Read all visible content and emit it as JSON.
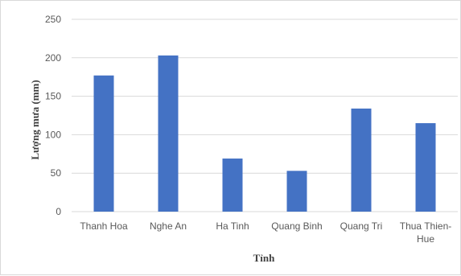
{
  "chart_data": {
    "type": "bar",
    "title": "",
    "xlabel": "Tỉnh",
    "ylabel": "Lượng mưa (mm)",
    "categories": [
      [
        "Thanh Hoa"
      ],
      [
        "Nghe An"
      ],
      [
        "Ha Tinh"
      ],
      [
        "Quang Binh"
      ],
      [
        "Quang Tri"
      ],
      [
        "Thua Thien-",
        "Hue"
      ]
    ],
    "values": [
      177,
      203,
      69,
      53,
      134,
      115
    ],
    "ylim": [
      0,
      250
    ],
    "yticks": [
      0,
      50,
      100,
      150,
      200,
      250
    ],
    "grid": true,
    "legend": "none",
    "bar_color": "#4472c4",
    "grid_color": "#d9d9d9"
  }
}
